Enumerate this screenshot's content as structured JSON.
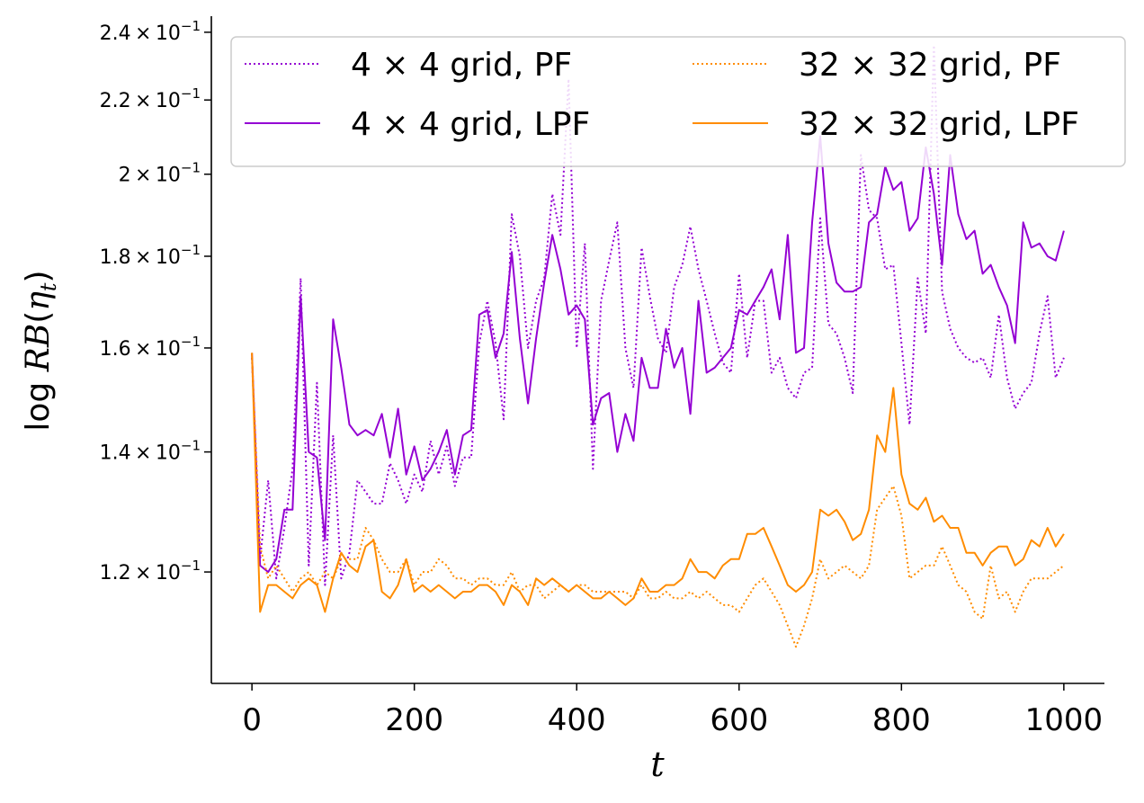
{
  "chart_data": {
    "type": "line",
    "title": "",
    "xlabel": "t",
    "ylabel": "log RB(η_t)",
    "xlim": [
      -50,
      1050
    ],
    "ylim": [
      0.104,
      0.245
    ],
    "yscale": "log",
    "x_ticks": [
      0,
      200,
      400,
      600,
      800,
      1000
    ],
    "x_tick_labels": [
      "0",
      "200",
      "400",
      "600",
      "800",
      "1000"
    ],
    "y_ticks": [
      0.12,
      0.14,
      0.16,
      0.18,
      0.2,
      0.22,
      0.24
    ],
    "y_tick_mantissas": [
      "1.2",
      "1.4",
      "1.6",
      "1.8",
      "2",
      "2.2",
      "2.4"
    ],
    "y_tick_base": "10",
    "y_tick_exponent": "−1",
    "grid": false,
    "legend_position": "top",
    "legend_columns": 2,
    "x": [
      0,
      10,
      20,
      30,
      40,
      50,
      60,
      70,
      80,
      90,
      100,
      110,
      120,
      130,
      140,
      150,
      160,
      170,
      180,
      190,
      200,
      210,
      220,
      230,
      240,
      250,
      260,
      270,
      280,
      290,
      300,
      310,
      320,
      330,
      340,
      350,
      360,
      370,
      380,
      390,
      400,
      410,
      420,
      430,
      440,
      450,
      460,
      470,
      480,
      490,
      500,
      510,
      520,
      530,
      540,
      550,
      560,
      570,
      580,
      590,
      600,
      610,
      620,
      630,
      640,
      650,
      660,
      670,
      680,
      690,
      700,
      710,
      720,
      730,
      740,
      750,
      760,
      770,
      780,
      790,
      800,
      810,
      820,
      830,
      840,
      850,
      860,
      870,
      880,
      890,
      900,
      910,
      920,
      930,
      940,
      950,
      960,
      970,
      980,
      990,
      1000
    ],
    "series": [
      {
        "name_lhs": "4",
        "name_rhs": "4",
        "name_suffix": "grid, PF",
        "color": "#9400d3",
        "style": "dotted",
        "values": [
          0.158,
          0.122,
          0.135,
          0.119,
          0.127,
          0.137,
          0.175,
          0.121,
          0.153,
          0.118,
          0.143,
          0.119,
          0.123,
          0.135,
          0.133,
          0.131,
          0.131,
          0.138,
          0.135,
          0.131,
          0.136,
          0.133,
          0.142,
          0.136,
          0.141,
          0.134,
          0.139,
          0.139,
          0.161,
          0.17,
          0.161,
          0.146,
          0.19,
          0.18,
          0.16,
          0.17,
          0.175,
          0.195,
          0.185,
          0.226,
          0.16,
          0.183,
          0.137,
          0.17,
          0.179,
          0.188,
          0.16,
          0.152,
          0.182,
          0.171,
          0.162,
          0.159,
          0.173,
          0.178,
          0.187,
          0.177,
          0.17,
          0.163,
          0.157,
          0.155,
          0.176,
          0.158,
          0.17,
          0.17,
          0.155,
          0.158,
          0.152,
          0.15,
          0.155,
          0.156,
          0.189,
          0.165,
          0.163,
          0.158,
          0.151,
          0.205,
          0.191,
          0.189,
          0.177,
          0.178,
          0.161,
          0.145,
          0.175,
          0.163,
          0.236,
          0.172,
          0.164,
          0.16,
          0.158,
          0.157,
          0.158,
          0.154,
          0.167,
          0.154,
          0.148,
          0.151,
          0.153,
          0.163,
          0.171,
          0.154,
          0.158
        ]
      },
      {
        "name_lhs": "4",
        "name_rhs": "4",
        "name_suffix": "grid, LPF",
        "color": "#9400d3",
        "style": "solid",
        "values": [
          0.159,
          0.121,
          0.12,
          0.122,
          0.13,
          0.13,
          0.171,
          0.14,
          0.139,
          0.125,
          0.166,
          0.156,
          0.145,
          0.143,
          0.144,
          0.143,
          0.147,
          0.139,
          0.148,
          0.136,
          0.141,
          0.135,
          0.137,
          0.14,
          0.144,
          0.136,
          0.143,
          0.144,
          0.167,
          0.168,
          0.158,
          0.163,
          0.181,
          0.162,
          0.149,
          0.162,
          0.174,
          0.185,
          0.177,
          0.167,
          0.169,
          0.166,
          0.145,
          0.15,
          0.151,
          0.14,
          0.147,
          0.142,
          0.158,
          0.152,
          0.152,
          0.164,
          0.156,
          0.16,
          0.147,
          0.17,
          0.155,
          0.156,
          0.158,
          0.16,
          0.168,
          0.167,
          0.17,
          0.173,
          0.177,
          0.166,
          0.185,
          0.159,
          0.16,
          0.188,
          0.21,
          0.183,
          0.174,
          0.172,
          0.172,
          0.173,
          0.188,
          0.19,
          0.202,
          0.196,
          0.198,
          0.186,
          0.189,
          0.207,
          0.195,
          0.178,
          0.205,
          0.19,
          0.184,
          0.186,
          0.176,
          0.178,
          0.173,
          0.169,
          0.161,
          0.188,
          0.182,
          0.183,
          0.18,
          0.179,
          0.186
        ]
      },
      {
        "name_lhs": "32",
        "name_rhs": "32",
        "name_suffix": "grid, PF",
        "color": "#ff8c00",
        "style": "dotted",
        "values": [
          0.159,
          0.124,
          0.119,
          0.121,
          0.119,
          0.117,
          0.119,
          0.12,
          0.118,
          0.12,
          0.119,
          0.122,
          0.122,
          0.122,
          0.127,
          0.125,
          0.122,
          0.12,
          0.12,
          0.122,
          0.118,
          0.12,
          0.12,
          0.122,
          0.121,
          0.119,
          0.119,
          0.118,
          0.119,
          0.119,
          0.118,
          0.118,
          0.12,
          0.117,
          0.118,
          0.118,
          0.116,
          0.117,
          0.118,
          0.117,
          0.118,
          0.118,
          0.117,
          0.117,
          0.117,
          0.117,
          0.117,
          0.116,
          0.118,
          0.116,
          0.116,
          0.117,
          0.116,
          0.116,
          0.117,
          0.116,
          0.117,
          0.116,
          0.115,
          0.115,
          0.114,
          0.116,
          0.118,
          0.119,
          0.117,
          0.115,
          0.112,
          0.109,
          0.112,
          0.116,
          0.122,
          0.119,
          0.12,
          0.121,
          0.12,
          0.119,
          0.121,
          0.13,
          0.132,
          0.134,
          0.129,
          0.119,
          0.12,
          0.121,
          0.121,
          0.124,
          0.121,
          0.118,
          0.117,
          0.114,
          0.113,
          0.121,
          0.116,
          0.117,
          0.114,
          0.117,
          0.119,
          0.119,
          0.119,
          0.12,
          0.121
        ]
      },
      {
        "name_lhs": "32",
        "name_rhs": "32",
        "name_suffix": "grid, LPF",
        "color": "#ff8c00",
        "style": "solid",
        "values": [
          0.159,
          0.114,
          0.118,
          0.118,
          0.117,
          0.116,
          0.118,
          0.119,
          0.118,
          0.114,
          0.119,
          0.123,
          0.121,
          0.12,
          0.124,
          0.125,
          0.117,
          0.116,
          0.118,
          0.122,
          0.117,
          0.118,
          0.117,
          0.118,
          0.117,
          0.116,
          0.117,
          0.117,
          0.118,
          0.118,
          0.117,
          0.115,
          0.118,
          0.117,
          0.115,
          0.119,
          0.118,
          0.119,
          0.118,
          0.117,
          0.118,
          0.117,
          0.116,
          0.116,
          0.117,
          0.116,
          0.115,
          0.116,
          0.119,
          0.117,
          0.117,
          0.118,
          0.118,
          0.119,
          0.122,
          0.12,
          0.12,
          0.119,
          0.121,
          0.122,
          0.122,
          0.126,
          0.126,
          0.127,
          0.124,
          0.121,
          0.118,
          0.117,
          0.118,
          0.12,
          0.13,
          0.129,
          0.13,
          0.128,
          0.125,
          0.126,
          0.13,
          0.143,
          0.14,
          0.152,
          0.136,
          0.131,
          0.13,
          0.132,
          0.128,
          0.129,
          0.127,
          0.127,
          0.123,
          0.123,
          0.121,
          0.123,
          0.124,
          0.124,
          0.121,
          0.122,
          0.125,
          0.124,
          0.127,
          0.124,
          0.126
        ]
      }
    ]
  },
  "colors": {
    "purple": "#9400d3",
    "orange": "#ff8c00"
  }
}
